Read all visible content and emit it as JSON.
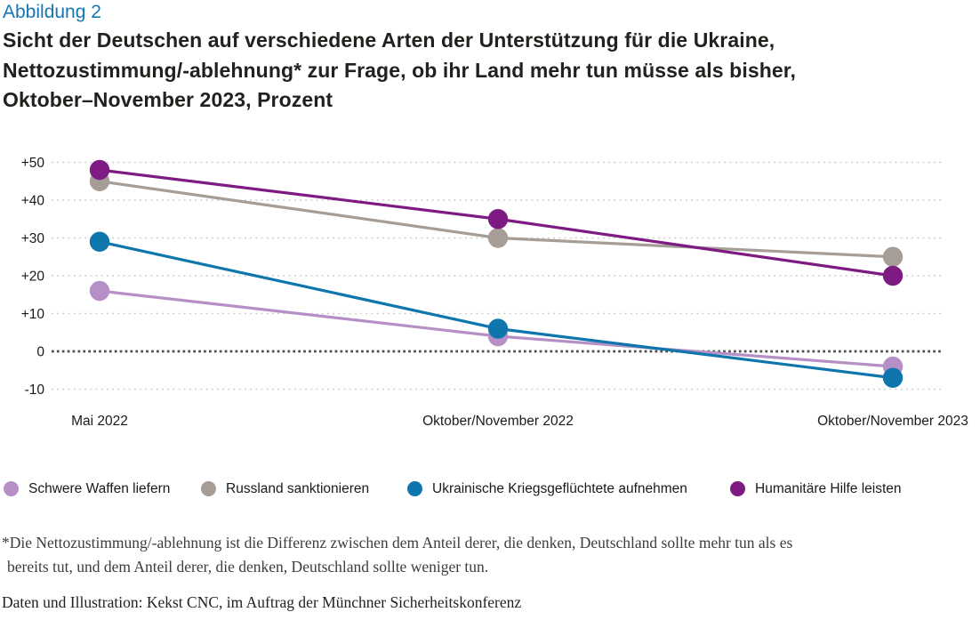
{
  "figure_label": "Abbildung 2",
  "title": "Sicht der Deutschen auf verschiedene Arten der Unterstützung für die Ukraine,\nNettozustimmung/-ablehnung* zur Frage, ob ihr Land mehr tun müsse als bisher,\nOktober–November 2023, Prozent",
  "colors": {
    "figure_label_blue": "#1577b2",
    "title_text": "#21211e",
    "axis_text": "#1a1a1a",
    "grid": "#c9c9c9",
    "zero_line": "#4d4d4d"
  },
  "chart_data": {
    "type": "line",
    "categories": [
      "Mai 2022",
      "Oktober/November 2022",
      "Oktober/November 2023"
    ],
    "series": [
      {
        "name": "Schwere Waffen liefern",
        "color": "#b58fc6",
        "values": [
          16,
          4,
          -4
        ]
      },
      {
        "name": "Russland sanktionieren",
        "color": "#a69d96",
        "values": [
          45,
          30,
          25
        ]
      },
      {
        "name": "Ukrainische Kriegsgeflüchtete aufnehmen",
        "color": "#0f76ad",
        "values": [
          29,
          6,
          -7
        ]
      },
      {
        "name": "Humanitäre Hilfe leisten",
        "color": "#7d1b82",
        "values": [
          48,
          35,
          20
        ]
      }
    ],
    "y_ticks": [
      {
        "value": 50,
        "label": "+50"
      },
      {
        "value": 40,
        "label": "+40"
      },
      {
        "value": 30,
        "label": "+30"
      },
      {
        "value": 20,
        "label": "+20"
      },
      {
        "value": 10,
        "label": "+10"
      },
      {
        "value": 0,
        "label": "0"
      },
      {
        "value": -10,
        "label": "-10"
      }
    ],
    "ylim": [
      -10,
      50
    ],
    "grid": "dotted horizontal lines, emphasized dotted zero line",
    "legend_position": "bottom"
  },
  "footnote": {
    "lines": [
      "*Die Nettozustimmung/-ablehnung ist die Differenz zwischen dem Anteil derer, die denken, Deutschland sollte mehr tun als es",
      "bereits tut, und dem Anteil derer, die denken, Deutschland sollte weniger tun."
    ]
  },
  "source": "Daten und Illustration: Kekst CNC, im Auftrag der Münchner Sicherheitskonferenz"
}
